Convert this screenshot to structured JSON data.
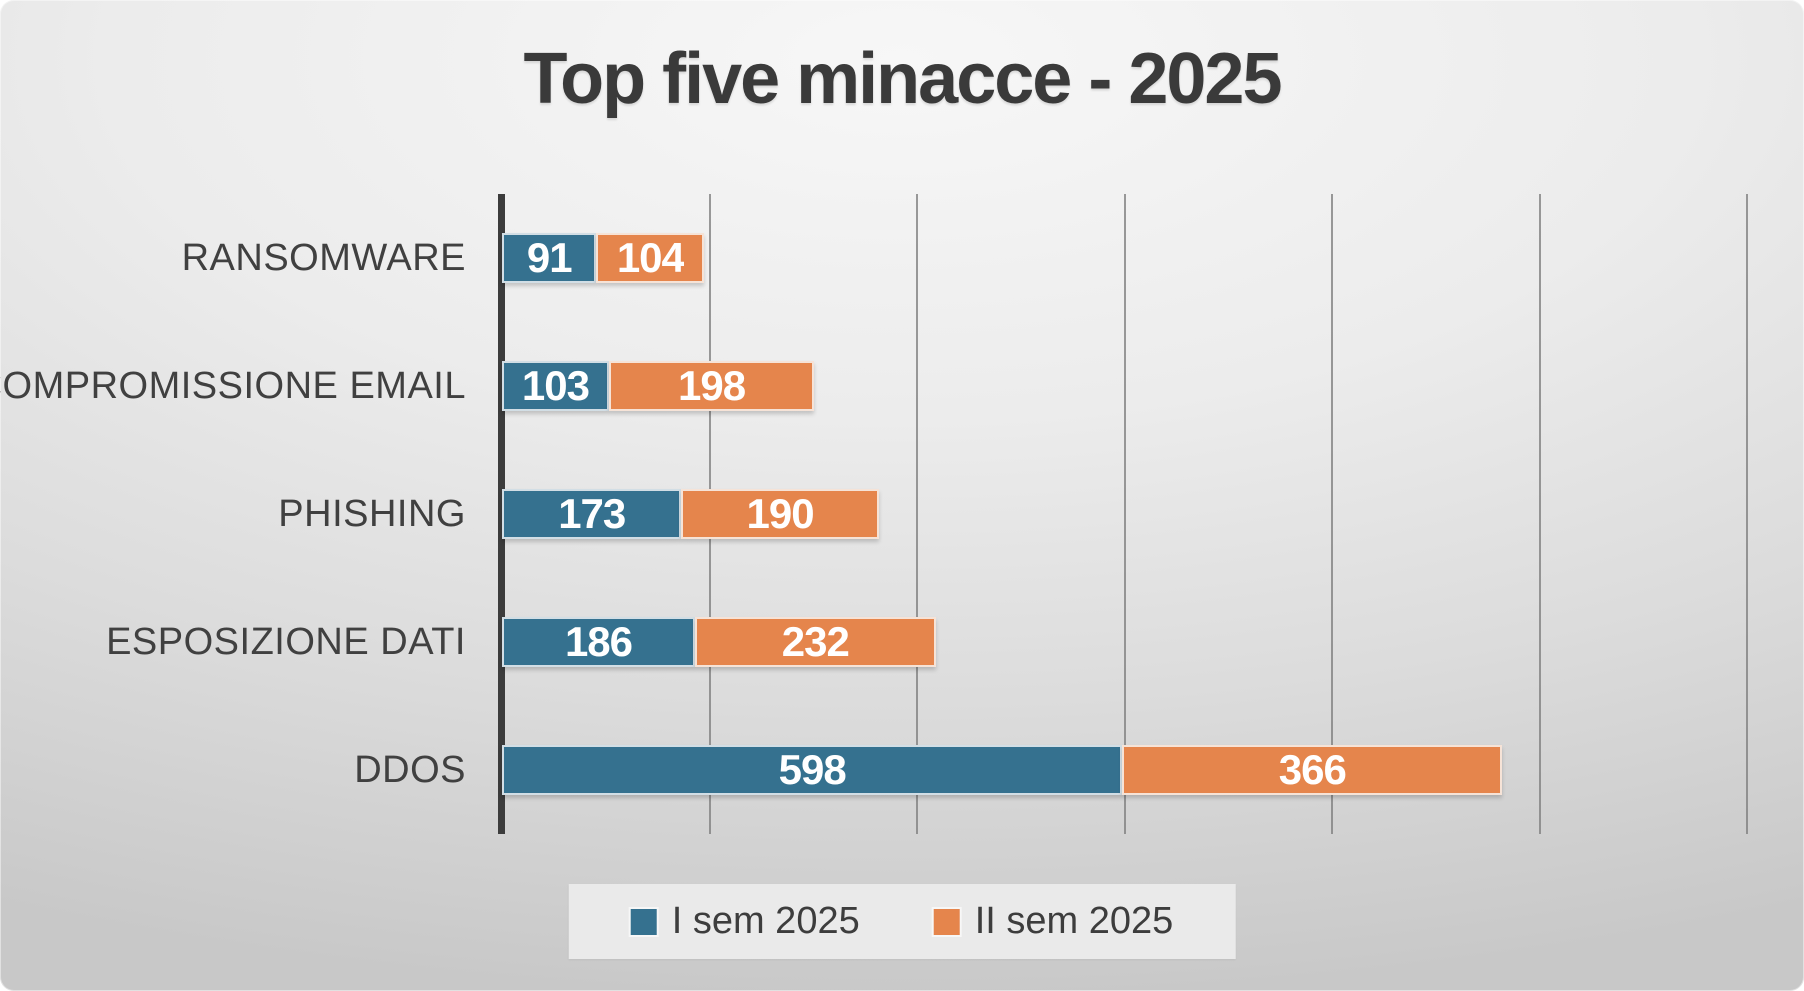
{
  "chart_data": {
    "type": "bar",
    "orientation": "horizontal",
    "stacked": true,
    "title": "Top five minacce - 2025",
    "categories": [
      "RANSOMWARE",
      "COMPROMISSIONE EMAIL",
      "PHISHING",
      "ESPOSIZIONE DATI",
      "DDOS"
    ],
    "series": [
      {
        "name": "I sem 2025",
        "color": "#35718F",
        "values": [
          91,
          103,
          173,
          186,
          598
        ]
      },
      {
        "name": "II sem 2025",
        "color": "#E5854C",
        "values": [
          104,
          198,
          190,
          232,
          366
        ]
      }
    ],
    "totals": [
      195,
      301,
      363,
      418,
      964
    ],
    "xlim": [
      0,
      1200
    ],
    "gridline_step": 200,
    "grid": "vertical-only",
    "axis_tick_labels_visible": false,
    "value_labels": "inside-segments",
    "legend_position": "bottom-center"
  },
  "colors": {
    "series_1": "#35718F",
    "series_2": "#E5854C",
    "title_text": "#3A3A3A",
    "category_text": "#404040",
    "value_label_text": "#FFFFFF",
    "axis_line": "#3C3C3C",
    "gridline": "#818181",
    "legend_background": "#EAEAEA",
    "legend_text": "#3D3D3D",
    "background_center": "#F7F7F7",
    "background_edge": "#C8C8C8"
  }
}
